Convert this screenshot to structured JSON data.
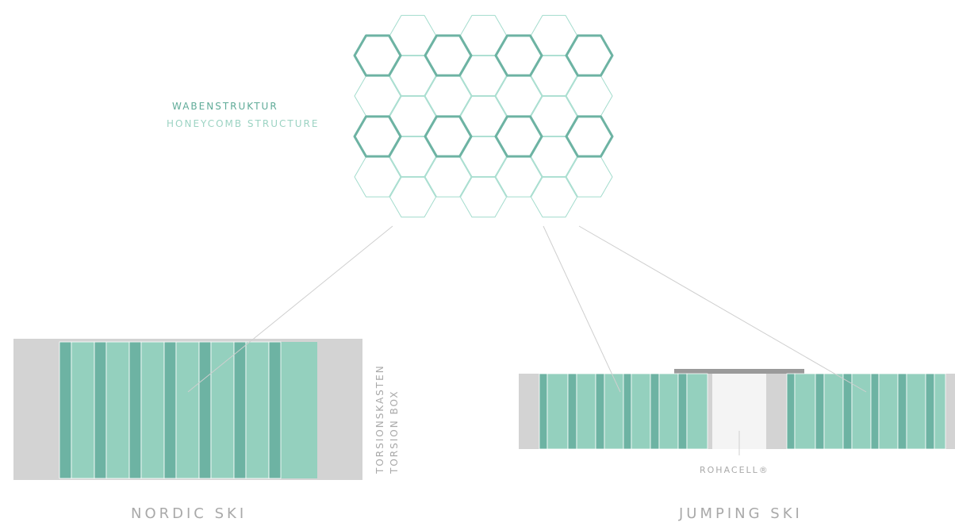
{
  "labels": {
    "honeycomb_de": "WABENSTRUKTUR",
    "honeycomb_en": "HONEYCOMB STRUCTURE",
    "torsion_de": "TORSIONSKASTEN",
    "torsion_en": "TORSION BOX",
    "rohacell": "ROHACELL®",
    "nordic_ski": "NORDIC SKI",
    "jumping_ski": "JUMPING SKI"
  },
  "colors": {
    "honeycomb_bold": "#6db3a3",
    "honeycomb_thin": "#a3dccd",
    "core_dark": "#6db3a3",
    "core_light": "#94d0be",
    "sidewall_gray": "#d3d3d3",
    "rohacell_fill": "#f4f4f4",
    "top_plate": "#9a9a9a",
    "connector_line": "#cfcfcf",
    "label_gray": "#a9a9a9"
  }
}
